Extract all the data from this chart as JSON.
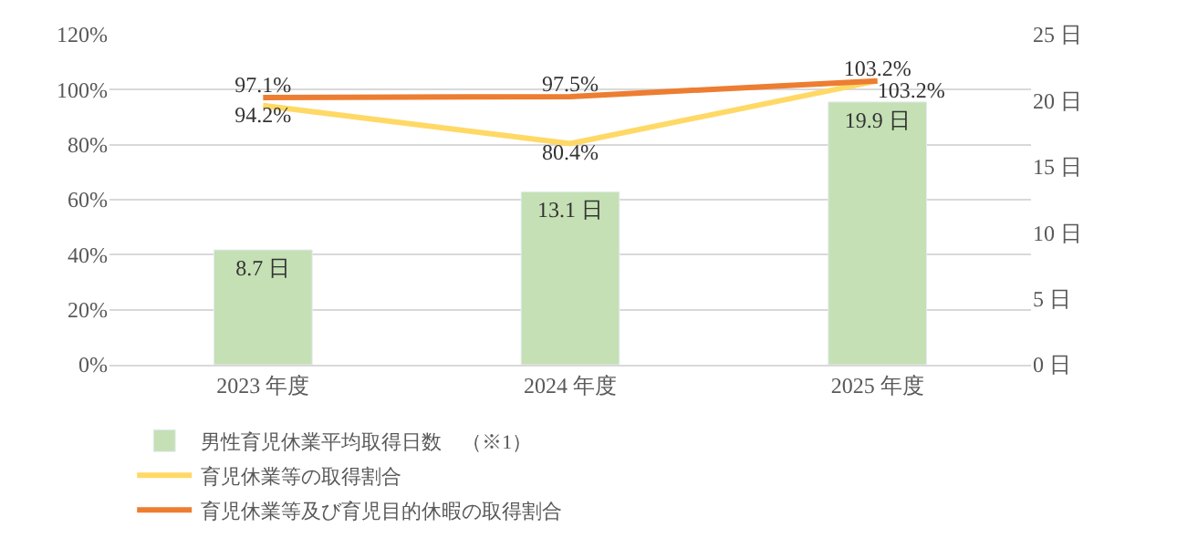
{
  "chart_data": {
    "type": "bar",
    "categories": [
      "2023 年度",
      "2024 年度",
      "2025 年度"
    ],
    "series": [
      {
        "name": "男性育児休業平均取得日数　（※1）",
        "axis": "y2",
        "color": "#c5e0b4",
        "values": [
          8.7,
          13.1,
          19.9
        ],
        "value_labels": [
          "8.7 日",
          "13.1 日",
          "19.9 日"
        ]
      },
      {
        "name": "育児休業等の取得割合",
        "type": "line",
        "color": "#ffd966",
        "values": [
          94.2,
          80.4,
          103.2
        ],
        "value_labels": [
          "94.2%",
          "80.4%",
          "103.2%"
        ]
      },
      {
        "name": "育児休業等及び育児目的休暇の取得割合",
        "type": "line",
        "color": "#ed7d31",
        "values": [
          97.1,
          97.5,
          103.2
        ],
        "value_labels": [
          "97.1%",
          "97.5%",
          "103.2%"
        ]
      }
    ],
    "ylim": [
      0,
      120
    ],
    "yticks": [
      {
        "value": 0,
        "label": "0%"
      },
      {
        "value": 20,
        "label": "20%"
      },
      {
        "value": 40,
        "label": "40%"
      },
      {
        "value": 60,
        "label": "60%"
      },
      {
        "value": 80,
        "label": "80%"
      },
      {
        "value": 100,
        "label": "100%"
      },
      {
        "value": 120,
        "label": "120%"
      }
    ],
    "y2lim": [
      0,
      25
    ],
    "y2ticks": [
      {
        "value": 0,
        "label": "0 日"
      },
      {
        "value": 5,
        "label": "5 日"
      },
      {
        "value": 10,
        "label": "10 日"
      },
      {
        "value": 15,
        "label": "15 日"
      },
      {
        "value": 20,
        "label": "20 日"
      },
      {
        "value": 25,
        "label": "25 日"
      }
    ],
    "grid": "y",
    "legend": "bottom",
    "marker": "none",
    "line_style": "solid"
  }
}
